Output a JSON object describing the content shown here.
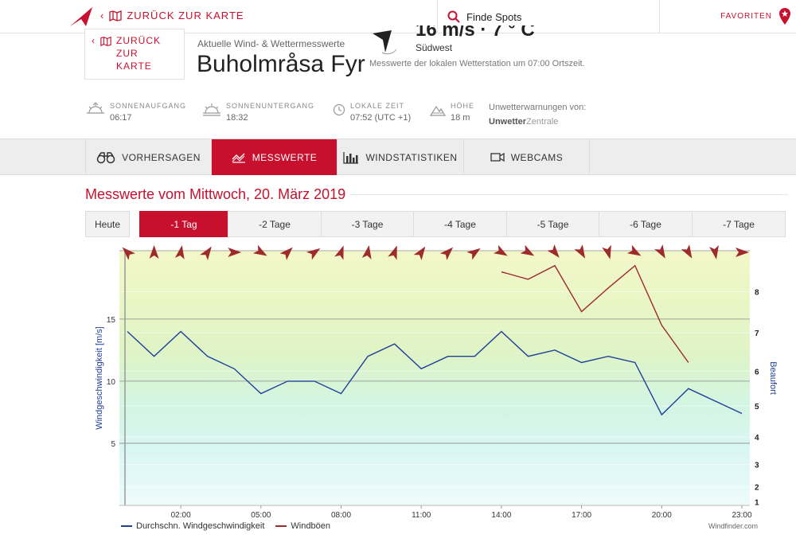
{
  "topbar": {
    "back_label": "ZURÜCK ZUR KARTE",
    "search_label": "Finde Spots",
    "favorites_label": "FAVORITEN"
  },
  "header": {
    "back_line1": "ZURÜCK ZUR",
    "back_line2": "KARTE",
    "subtitle": "Aktuelle Wind- & Wettermesswerte",
    "title": "Buholmråsa Fyr",
    "wind_value": "16 m/s · 7 ° C",
    "wind_direction": "Südwest",
    "station_note": "Messwerte der lokalen Wetterstation um 07:00 Ortszeit."
  },
  "info": {
    "sunrise_label": "SONNENAUFGANG",
    "sunrise": "06:17",
    "sunset_label": "SONNENUNTERGANG",
    "sunset": "18:32",
    "localtime_label": "LOKALE ZEIT",
    "localtime": "07:52",
    "utc": "(UTC +1)",
    "height_label": "HÖHE",
    "height": "18 m",
    "warn_label": "Unwetterwarnungen von:",
    "warn_brand_bold": "Unwetter",
    "warn_brand_light": "Zentrale"
  },
  "tabs": [
    {
      "label": "VORHERSAGEN",
      "icon": "binoculars-icon"
    },
    {
      "label": "MESSWERTE",
      "icon": "chart-line-icon"
    },
    {
      "label": "WINDSTATISTIKEN",
      "icon": "bar-chart-icon"
    },
    {
      "label": "WEBCAMS",
      "icon": "camera-icon"
    }
  ],
  "section_title": "Messwerte vom Mittwoch, 20. März 2019",
  "days": [
    "Heute",
    "-1 Tag",
    "-2 Tage",
    "-3 Tage",
    "-4 Tage",
    "-5 Tage",
    "-6 Tage",
    "-7 Tage"
  ],
  "colors": {
    "accent": "#c8102e",
    "avg_line": "#1f3f99",
    "gust_line": "#9e2a2b",
    "arrow": "#9e2a2b"
  },
  "credit": "Windfinder.com",
  "chart_data": {
    "type": "line",
    "xlabel": "",
    "ylabel": "Windgeschwindigkeit [m/s]",
    "y2label": "Beaufort",
    "x_ticks": [
      "02:00",
      "05:00",
      "08:00",
      "11:00",
      "14:00",
      "17:00",
      "20:00",
      "23:00"
    ],
    "y_ticks": [
      5,
      10,
      15
    ],
    "beaufort_ticks": [
      "1",
      "2",
      "3",
      "4",
      "5",
      "6",
      "7",
      "8"
    ],
    "xlim": [
      0,
      23
    ],
    "ylim": [
      0,
      20.5
    ],
    "hours": [
      0,
      1,
      2,
      3,
      4,
      5,
      6,
      7,
      8,
      9,
      10,
      11,
      12,
      13,
      14,
      15,
      16,
      17,
      18,
      19,
      20,
      21,
      22,
      23
    ],
    "series": [
      {
        "name": "Durchschn. Windgeschwindigkeit",
        "x": [
          0,
          1,
          2,
          3,
          4,
          5,
          6,
          7,
          8,
          9,
          10,
          11,
          12,
          13,
          14,
          15,
          16,
          17,
          18,
          19,
          20,
          21,
          22,
          23
        ],
        "values": [
          14,
          12,
          14,
          12,
          11,
          9,
          10,
          10,
          9,
          12,
          13,
          11,
          12,
          12,
          14,
          12,
          12.5,
          11.5,
          12,
          11.5,
          7.3,
          9.4,
          8.4,
          7.4
        ]
      },
      {
        "name": "Windböen",
        "x": [
          14,
          15,
          16,
          17,
          18,
          19,
          20,
          21
        ],
        "values": [
          18.8,
          18.2,
          19.3,
          15.6,
          17.5,
          19.3,
          14.5,
          11.5
        ]
      }
    ],
    "wind_direction_deg": [
      135,
      180,
      190,
      215,
      270,
      300,
      225,
      235,
      200,
      190,
      200,
      215,
      225,
      235,
      300,
      300,
      320,
      330,
      345,
      300,
      330,
      330,
      350,
      270
    ]
  }
}
